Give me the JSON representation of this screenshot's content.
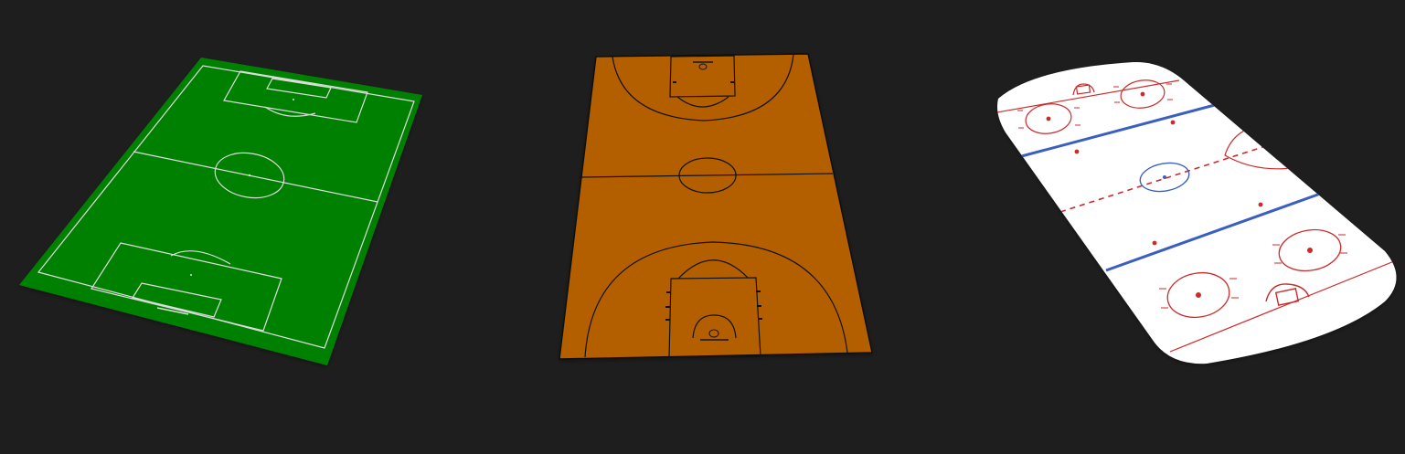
{
  "scene": {
    "background_color": "#1e1e1e"
  },
  "fields": [
    {
      "sport": "soccer",
      "surface_color": "#008000",
      "line_color": "#dcdcdc",
      "icon": "soccer-pitch-icon"
    },
    {
      "sport": "basketball",
      "surface_color": "#b35f00",
      "line_color": "#111111",
      "icon": "basketball-court-icon"
    },
    {
      "sport": "hockey",
      "surface_color": "#ffffff",
      "blue_line_color": "#3a5fc0",
      "red_line_color": "#cc2b2b",
      "icon": "hockey-rink-icon"
    }
  ]
}
